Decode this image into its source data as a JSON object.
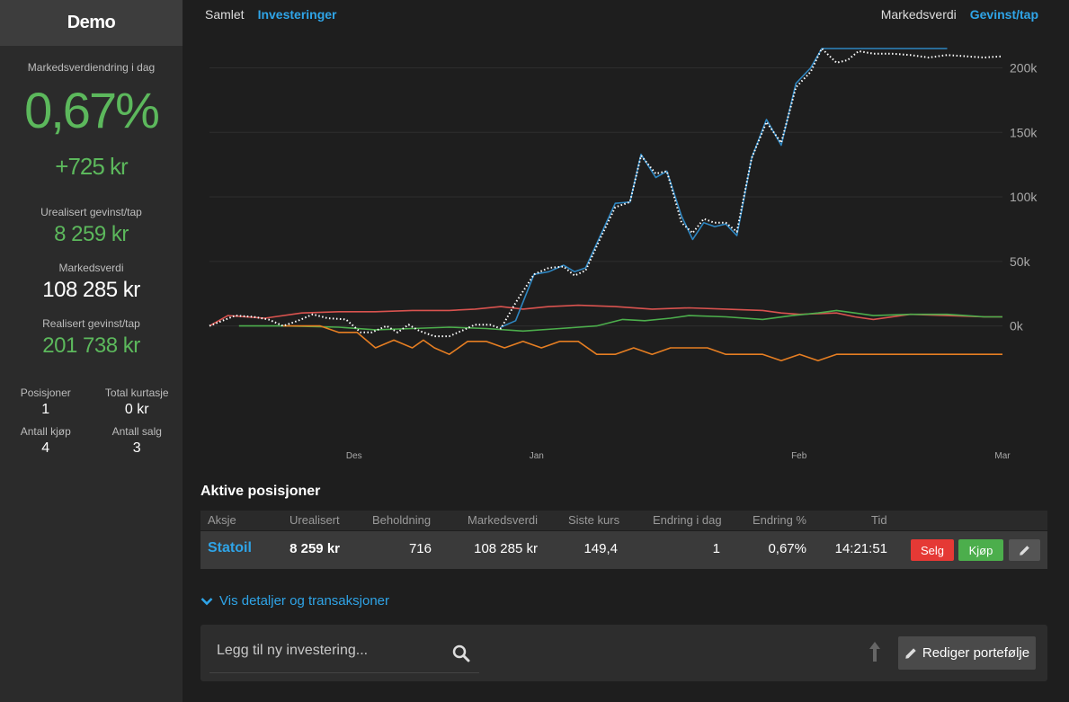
{
  "sidebar": {
    "title": "Demo",
    "change_label": "Markedsverdiendring i dag",
    "change_pct": "0,67%",
    "change_kr": "+725 kr",
    "unrealized_label": "Urealisert gevinst/tap",
    "unrealized_value": "8 259 kr",
    "market_label": "Markedsverdi",
    "market_value": "108 285 kr",
    "realized_label": "Realisert gevinst/tap",
    "realized_value": "201 738 kr",
    "stats": {
      "positions_label": "Posisjoner",
      "positions_value": "1",
      "brokerage_label": "Total kurtasje",
      "brokerage_value": "0 kr",
      "buys_label": "Antall kjøp",
      "buys_value": "4",
      "sells_label": "Antall salg",
      "sells_value": "3"
    }
  },
  "view_toggle": {
    "all": "Samlet",
    "investments": "Investeringer",
    "active": "investments"
  },
  "metric_toggle": {
    "market": "Markedsverdi",
    "gain": "Gevinst/tap",
    "active": "gain"
  },
  "chart_data": {
    "type": "line",
    "x_ticks": [
      "Des",
      "Jan",
      "Feb",
      "Mar"
    ],
    "y_ticks": [
      "200k",
      "150k",
      "100k",
      "50k",
      "0k"
    ],
    "ylim": [
      -40000,
      215000
    ],
    "colors": {
      "blue": "#2e86c1",
      "white": "#ffffff",
      "red": "#d9534f",
      "green": "#4cae4c",
      "orange": "#e67e22"
    },
    "series": [
      {
        "color": "blue",
        "style": "solid",
        "values": [
          [
            79,
            -1000
          ],
          [
            83,
            4000
          ],
          [
            88,
            40000
          ],
          [
            92,
            42000
          ],
          [
            96,
            47000
          ],
          [
            99,
            42000
          ],
          [
            102,
            45000
          ],
          [
            106,
            70000
          ],
          [
            110,
            95000
          ],
          [
            114,
            96000
          ],
          [
            117,
            133000
          ],
          [
            121,
            115000
          ],
          [
            124,
            120000
          ],
          [
            128,
            85000
          ],
          [
            131,
            67000
          ],
          [
            134,
            80000
          ],
          [
            137,
            77000
          ],
          [
            140,
            79000
          ],
          [
            143,
            70000
          ],
          [
            147,
            130000
          ],
          [
            151,
            160000
          ],
          [
            155,
            140000
          ],
          [
            159,
            188000
          ],
          [
            163,
            200000
          ],
          [
            166,
            215000
          ],
          [
            170,
            215000
          ],
          [
            175,
            215000
          ],
          [
            180,
            215000
          ],
          [
            185,
            215000
          ],
          [
            190,
            215000
          ],
          [
            195,
            215000
          ],
          [
            200,
            215000
          ]
        ]
      },
      {
        "color": "white",
        "style": "dotted",
        "values": [
          [
            0,
            0
          ],
          [
            7,
            8000
          ],
          [
            12,
            7000
          ],
          [
            16,
            5000
          ],
          [
            20,
            0
          ],
          [
            24,
            4000
          ],
          [
            28,
            9000
          ],
          [
            32,
            6000
          ],
          [
            37,
            5000
          ],
          [
            41,
            -5000
          ],
          [
            44,
            -5000
          ],
          [
            48,
            0
          ],
          [
            51,
            -5000
          ],
          [
            54,
            1000
          ],
          [
            57,
            -4000
          ],
          [
            61,
            -8000
          ],
          [
            65,
            -8000
          ],
          [
            69,
            -3000
          ],
          [
            72,
            1000
          ],
          [
            76,
            1000
          ],
          [
            79,
            -2000
          ],
          [
            83,
            18000
          ],
          [
            88,
            40000
          ],
          [
            92,
            45000
          ],
          [
            96,
            46000
          ],
          [
            99,
            39000
          ],
          [
            102,
            43000
          ],
          [
            106,
            68000
          ],
          [
            110,
            92000
          ],
          [
            114,
            96000
          ],
          [
            117,
            132000
          ],
          [
            121,
            118000
          ],
          [
            124,
            120000
          ],
          [
            128,
            80000
          ],
          [
            131,
            72000
          ],
          [
            134,
            83000
          ],
          [
            137,
            80000
          ],
          [
            140,
            80000
          ],
          [
            143,
            73000
          ],
          [
            147,
            130000
          ],
          [
            151,
            158000
          ],
          [
            155,
            142000
          ],
          [
            159,
            185000
          ],
          [
            163,
            197000
          ],
          [
            166,
            215000
          ],
          [
            170,
            204000
          ],
          [
            173,
            206000
          ],
          [
            176,
            213000
          ],
          [
            180,
            211000
          ],
          [
            185,
            211000
          ],
          [
            190,
            210000
          ],
          [
            195,
            208000
          ],
          [
            200,
            210000
          ],
          [
            205,
            209000
          ],
          [
            210,
            208000
          ],
          [
            215,
            209000
          ]
        ]
      },
      {
        "color": "red",
        "style": "solid",
        "values": [
          [
            0,
            0
          ],
          [
            5,
            8000
          ],
          [
            15,
            6000
          ],
          [
            25,
            10000
          ],
          [
            35,
            11000
          ],
          [
            45,
            11000
          ],
          [
            55,
            12000
          ],
          [
            65,
            12000
          ],
          [
            72,
            13000
          ],
          [
            79,
            15000
          ],
          [
            85,
            13000
          ],
          [
            92,
            15000
          ],
          [
            100,
            16000
          ],
          [
            110,
            15000
          ],
          [
            120,
            13000
          ],
          [
            130,
            14000
          ],
          [
            140,
            13000
          ],
          [
            150,
            12000
          ],
          [
            155,
            10000
          ],
          [
            160,
            9000
          ],
          [
            170,
            10000
          ],
          [
            175,
            7000
          ],
          [
            180,
            5000
          ],
          [
            190,
            9000
          ],
          [
            200,
            8000
          ],
          [
            210,
            7000
          ],
          [
            215,
            7000
          ]
        ]
      },
      {
        "color": "green",
        "style": "solid",
        "values": [
          [
            8,
            0
          ],
          [
            20,
            0
          ],
          [
            35,
            -1000
          ],
          [
            45,
            -3000
          ],
          [
            55,
            -2000
          ],
          [
            65,
            -1000
          ],
          [
            75,
            -2000
          ],
          [
            85,
            -4000
          ],
          [
            95,
            -2000
          ],
          [
            105,
            0
          ],
          [
            112,
            5000
          ],
          [
            118,
            4000
          ],
          [
            125,
            6000
          ],
          [
            130,
            8000
          ],
          [
            140,
            7000
          ],
          [
            150,
            5000
          ],
          [
            158,
            8000
          ],
          [
            165,
            10000
          ],
          [
            170,
            12000
          ],
          [
            175,
            10000
          ],
          [
            180,
            8000
          ],
          [
            190,
            9000
          ],
          [
            200,
            9000
          ],
          [
            205,
            8000
          ],
          [
            210,
            7000
          ],
          [
            215,
            7000
          ]
        ]
      },
      {
        "color": "orange",
        "style": "solid",
        "values": [
          [
            20,
            0
          ],
          [
            30,
            0
          ],
          [
            35,
            -5000
          ],
          [
            40,
            -5000
          ],
          [
            45,
            -17000
          ],
          [
            50,
            -11000
          ],
          [
            55,
            -17000
          ],
          [
            58,
            -11000
          ],
          [
            61,
            -17000
          ],
          [
            65,
            -22000
          ],
          [
            70,
            -12000
          ],
          [
            75,
            -12000
          ],
          [
            80,
            -17000
          ],
          [
            85,
            -12000
          ],
          [
            90,
            -17000
          ],
          [
            95,
            -12000
          ],
          [
            100,
            -12000
          ],
          [
            105,
            -22000
          ],
          [
            110,
            -22000
          ],
          [
            115,
            -17000
          ],
          [
            120,
            -22000
          ],
          [
            125,
            -17000
          ],
          [
            135,
            -17000
          ],
          [
            140,
            -22000
          ],
          [
            150,
            -22000
          ],
          [
            155,
            -27000
          ],
          [
            160,
            -22000
          ],
          [
            165,
            -27000
          ],
          [
            170,
            -22000
          ],
          [
            180,
            -22000
          ],
          [
            190,
            -22000
          ],
          [
            200,
            -22000
          ],
          [
            210,
            -22000
          ],
          [
            215,
            -22000
          ]
        ]
      }
    ]
  },
  "positions": {
    "title": "Aktive posisjoner",
    "headers": {
      "ticker": "Aksje",
      "unrealized": "Urealisert",
      "holding": "Beholdning",
      "market": "Markedsverdi",
      "last": "Siste kurs",
      "change_day": "Endring i dag",
      "change_pct": "Endring %",
      "time": "Tid"
    },
    "rows": [
      {
        "ticker": "Statoil",
        "unrealized": "8 259 kr",
        "holding": "716",
        "market": "108 285 kr",
        "last": "149,4",
        "change_day": "1",
        "change_pct": "0,67%",
        "time": "14:21:51"
      }
    ],
    "sell_label": "Selg",
    "buy_label": "Kjøp"
  },
  "details_link": "Vis detaljer og transaksjoner",
  "search": {
    "placeholder": "Legg til ny investering..."
  },
  "edit_portfolio_label": "Rediger portefølje"
}
